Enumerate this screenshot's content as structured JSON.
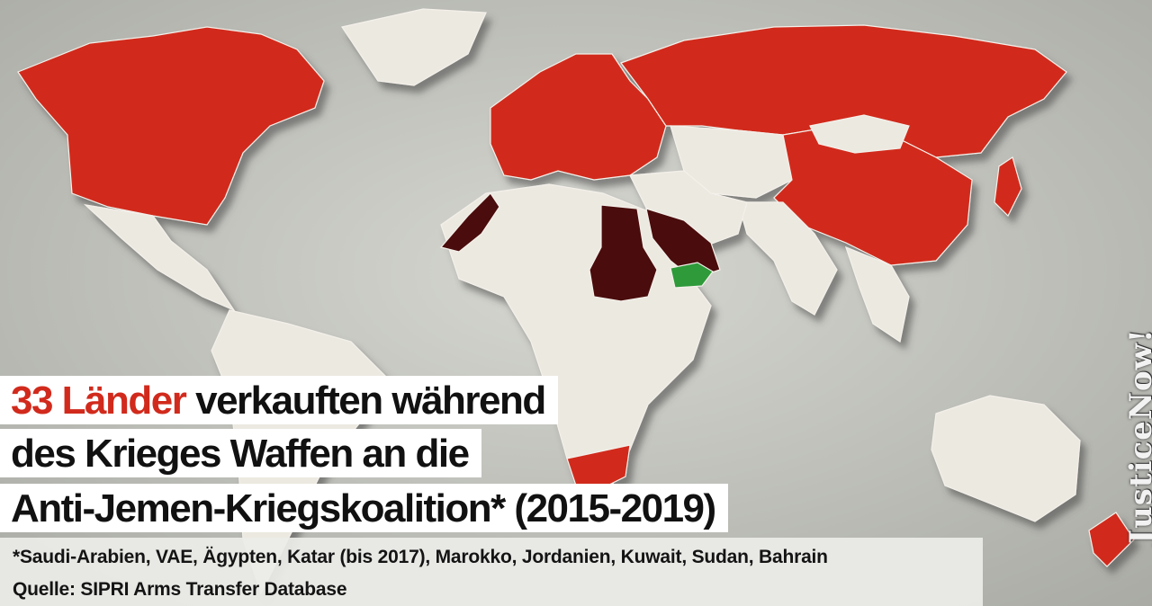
{
  "headline": {
    "accent": "33 Länder",
    "line1_rest": " verkauften während",
    "line2": "des Krieges Waffen an die",
    "line3": "Anti-Jemen-Kriegskoalition* (2015-2019)"
  },
  "footnote": "*Saudi-Arabien, VAE, Ägypten, Katar (bis 2017), Marokko, Jordanien, Kuwait, Sudan, Bahrain",
  "source": "Quelle: SIPRI Arms Transfer Database",
  "brand": "JusticeNow!",
  "colors": {
    "ocean": "#c9cac4",
    "land_neutral": "#ece9e1",
    "seller_countries": "#d12a1c",
    "coalition_countries": "#4a0c0c",
    "yemen": "#2e9a3a"
  }
}
